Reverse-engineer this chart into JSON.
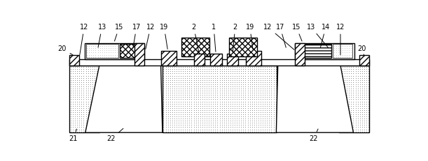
{
  "fig_width": 6.11,
  "fig_height": 2.31,
  "dpi": 100,
  "bg_color": "#ffffff",
  "lc": "#000000",
  "lw": 1.0
}
